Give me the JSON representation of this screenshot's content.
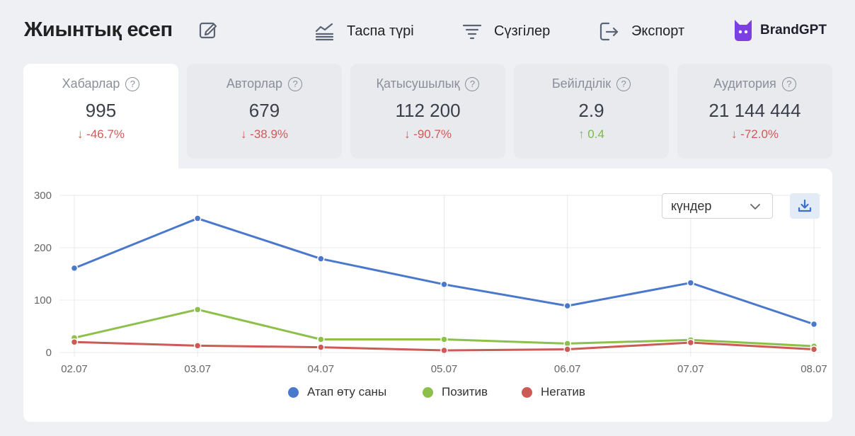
{
  "header": {
    "title": "Жиынтық есеп",
    "feed_label": "Таспа түрі",
    "filter_label": "Сүзгілер",
    "export_label": "Экспорт",
    "brand_label": "BrandGPT"
  },
  "kpis": [
    {
      "label": "Хабарлар",
      "value": "995",
      "delta": "↓ -46.7%",
      "trend": "down"
    },
    {
      "label": "Авторлар",
      "value": "679",
      "delta": "↓ -38.9%",
      "trend": "down"
    },
    {
      "label": "Қатысушылық",
      "value": "112 200",
      "delta": "↓ -90.7%",
      "trend": "down"
    },
    {
      "label": "Бейілділік",
      "value": "2.9",
      "delta": "↑ 0.4",
      "trend": "up"
    },
    {
      "label": "Аудитория",
      "value": "21 144 444",
      "delta": "↓ -72.0%",
      "trend": "down"
    }
  ],
  "controls": {
    "period_select": "күндер"
  },
  "colors": {
    "mentions": "#4a78cc",
    "positive": "#8cc04a",
    "negative": "#cc5a55"
  },
  "chart_data": {
    "type": "line",
    "categories": [
      "02.07",
      "03.07",
      "04.07",
      "05.07",
      "06.07",
      "07.07",
      "08.07"
    ],
    "ylim": [
      0,
      300
    ],
    "yticks": [
      0,
      100,
      200,
      300
    ],
    "grid": true,
    "legend_position": "bottom",
    "series": [
      {
        "name": "Атап өту саны",
        "color": "#4a78cc",
        "values": [
          161,
          256,
          179,
          130,
          89,
          133,
          54
        ]
      },
      {
        "name": "Позитив",
        "color": "#8cc04a",
        "values": [
          28,
          82,
          25,
          25,
          17,
          24,
          12
        ]
      },
      {
        "name": "Негатив",
        "color": "#cc5a55",
        "values": [
          20,
          13,
          10,
          4,
          6,
          19,
          6
        ]
      }
    ]
  }
}
